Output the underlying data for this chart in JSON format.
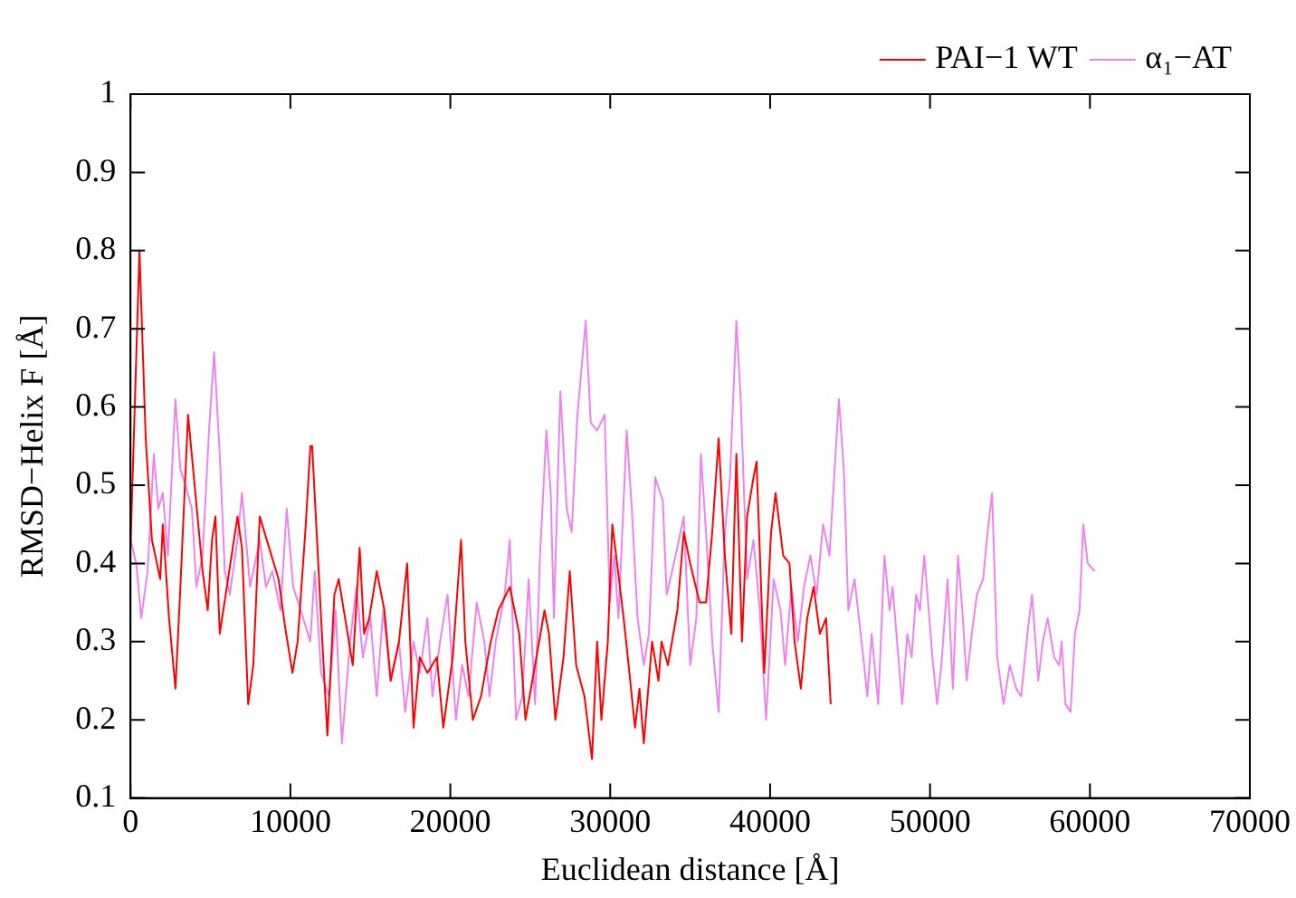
{
  "chart_data": {
    "type": "line",
    "xlabel": "Euclidean distance [Å]",
    "ylabel": "RMSD−Helix F [Å]",
    "xlim": [
      0,
      70000
    ],
    "xticks": [
      0,
      10000,
      20000,
      30000,
      40000,
      50000,
      60000,
      70000
    ],
    "ylim": [
      0.1,
      1
    ],
    "yticks": [
      0.1,
      0.2,
      0.3,
      0.4,
      0.5,
      0.6,
      0.7,
      0.8,
      0.9,
      1
    ],
    "legend": "top right",
    "marker": "none",
    "line_style": "solid",
    "series": [
      {
        "name": "PAI−1 WT",
        "color": "#ff0000",
        "x": [
          0,
          560,
          950,
          1340,
          1860,
          2020,
          2410,
          2810,
          3120,
          3600,
          3920,
          4510,
          4830,
          5100,
          5310,
          5580,
          6100,
          6690,
          6970,
          7360,
          7680,
          8080,
          8670,
          9260,
          9660,
          10130,
          10450,
          10930,
          11250,
          11360,
          11640,
          11920,
          12310,
          12750,
          13020,
          13420,
          13900,
          14330,
          14610,
          14930,
          15400,
          15880,
          16270,
          16790,
          17300,
          17700,
          18090,
          18570,
          19160,
          19560,
          20150,
          20670,
          20940,
          21410,
          21920,
          22530,
          23000,
          23720,
          24310,
          24700,
          25300,
          25890,
          26170,
          26570,
          27080,
          27470,
          27870,
          28390,
          28860,
          29180,
          29450,
          29850,
          30130,
          30370,
          30840,
          31150,
          31550,
          31830,
          32100,
          32620,
          33020,
          33210,
          33610,
          34200,
          34600,
          35000,
          35590,
          35990,
          36380,
          36780,
          37170,
          37570,
          37890,
          38240,
          38560,
          38960,
          39150,
          39630,
          40060,
          40340,
          40820,
          41210,
          41530,
          41920,
          42320,
          42720,
          43110,
          43500,
          43790
        ],
        "values": [
          0.42,
          0.8,
          0.56,
          0.43,
          0.38,
          0.45,
          0.33,
          0.24,
          0.37,
          0.59,
          0.52,
          0.39,
          0.34,
          0.43,
          0.46,
          0.31,
          0.38,
          0.46,
          0.42,
          0.22,
          0.27,
          0.46,
          0.42,
          0.38,
          0.32,
          0.26,
          0.3,
          0.44,
          0.55,
          0.55,
          0.44,
          0.33,
          0.18,
          0.36,
          0.38,
          0.33,
          0.27,
          0.42,
          0.31,
          0.33,
          0.39,
          0.34,
          0.25,
          0.3,
          0.4,
          0.19,
          0.28,
          0.26,
          0.28,
          0.19,
          0.28,
          0.43,
          0.3,
          0.2,
          0.23,
          0.3,
          0.34,
          0.37,
          0.31,
          0.2,
          0.27,
          0.34,
          0.31,
          0.2,
          0.28,
          0.39,
          0.27,
          0.23,
          0.15,
          0.3,
          0.2,
          0.3,
          0.45,
          0.41,
          0.33,
          0.27,
          0.19,
          0.24,
          0.17,
          0.3,
          0.25,
          0.3,
          0.27,
          0.34,
          0.44,
          0.4,
          0.35,
          0.35,
          0.44,
          0.56,
          0.41,
          0.31,
          0.54,
          0.3,
          0.46,
          0.51,
          0.53,
          0.26,
          0.44,
          0.49,
          0.41,
          0.4,
          0.3,
          0.24,
          0.33,
          0.37,
          0.31,
          0.33,
          0.22
        ]
      },
      {
        "name": "α₁−AT",
        "color": "#ee82ee",
        "x": [
          0,
          360,
          670,
          1070,
          1460,
          1740,
          2020,
          2340,
          2810,
          3120,
          3440,
          3840,
          4120,
          4510,
          4910,
          5230,
          5580,
          5900,
          6210,
          6690,
          6970,
          7480,
          8080,
          8470,
          8870,
          9380,
          9770,
          10170,
          10650,
          11240,
          11520,
          11920,
          12430,
          12830,
          13220,
          13730,
          14130,
          14530,
          15000,
          15400,
          15800,
          16270,
          16790,
          17180,
          17700,
          18090,
          18570,
          18880,
          19360,
          19830,
          20350,
          20740,
          21140,
          21650,
          22130,
          22450,
          22840,
          23400,
          23720,
          24110,
          24500,
          24900,
          25300,
          25610,
          26010,
          26280,
          26480,
          26880,
          27280,
          27590,
          27950,
          28470,
          28780,
          29180,
          29650,
          29970,
          30250,
          30520,
          31030,
          31350,
          31710,
          32100,
          32420,
          32820,
          33290,
          33530,
          34090,
          34600,
          35000,
          35390,
          35670,
          35990,
          36380,
          36780,
          37170,
          37490,
          37890,
          38160,
          38560,
          38960,
          39350,
          39750,
          40220,
          40650,
          40940,
          41330,
          41730,
          42120,
          42520,
          42910,
          43310,
          43710,
          44300,
          44610,
          44890,
          45280,
          45880,
          46080,
          46350,
          46760,
          47150,
          47470,
          47660,
          47940,
          48260,
          48580,
          48850,
          49130,
          49370,
          49640,
          49840,
          50150,
          50440,
          50710,
          51100,
          51430,
          51750,
          52020,
          52290,
          52610,
          52930,
          53320,
          53600,
          53880,
          54200,
          54600,
          54990,
          55390,
          55700,
          56090,
          56380,
          56770,
          57050,
          57360,
          57760,
          58080,
          58230,
          58470,
          58790,
          59060,
          59350,
          59580,
          59860,
          60300
        ],
        "values": [
          0.43,
          0.4,
          0.33,
          0.39,
          0.54,
          0.47,
          0.49,
          0.41,
          0.61,
          0.52,
          0.5,
          0.47,
          0.37,
          0.41,
          0.57,
          0.67,
          0.54,
          0.39,
          0.36,
          0.43,
          0.49,
          0.37,
          0.43,
          0.37,
          0.39,
          0.34,
          0.47,
          0.37,
          0.34,
          0.3,
          0.39,
          0.26,
          0.23,
          0.34,
          0.17,
          0.3,
          0.37,
          0.28,
          0.33,
          0.23,
          0.34,
          0.25,
          0.3,
          0.21,
          0.3,
          0.26,
          0.33,
          0.23,
          0.3,
          0.36,
          0.2,
          0.27,
          0.23,
          0.35,
          0.3,
          0.23,
          0.3,
          0.36,
          0.43,
          0.2,
          0.23,
          0.38,
          0.22,
          0.41,
          0.57,
          0.49,
          0.33,
          0.62,
          0.47,
          0.44,
          0.59,
          0.71,
          0.58,
          0.57,
          0.59,
          0.35,
          0.41,
          0.33,
          0.57,
          0.47,
          0.33,
          0.27,
          0.31,
          0.51,
          0.48,
          0.36,
          0.41,
          0.46,
          0.27,
          0.33,
          0.54,
          0.44,
          0.3,
          0.21,
          0.44,
          0.51,
          0.71,
          0.61,
          0.38,
          0.43,
          0.34,
          0.2,
          0.38,
          0.34,
          0.27,
          0.37,
          0.3,
          0.37,
          0.41,
          0.36,
          0.45,
          0.41,
          0.61,
          0.52,
          0.34,
          0.38,
          0.27,
          0.23,
          0.31,
          0.22,
          0.41,
          0.34,
          0.37,
          0.3,
          0.22,
          0.31,
          0.28,
          0.36,
          0.34,
          0.41,
          0.36,
          0.28,
          0.22,
          0.27,
          0.38,
          0.24,
          0.41,
          0.34,
          0.25,
          0.31,
          0.36,
          0.38,
          0.44,
          0.49,
          0.28,
          0.22,
          0.27,
          0.24,
          0.23,
          0.31,
          0.36,
          0.25,
          0.3,
          0.33,
          0.28,
          0.27,
          0.3,
          0.22,
          0.21,
          0.31,
          0.34,
          0.45,
          0.4,
          0.39
        ]
      }
    ]
  }
}
